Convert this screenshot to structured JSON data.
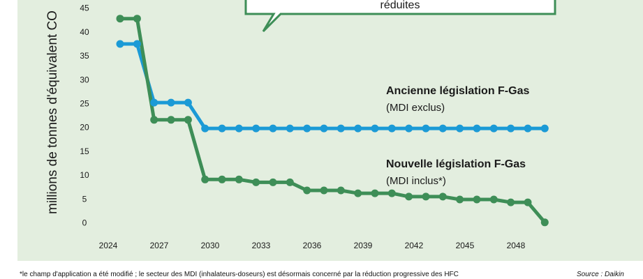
{
  "chart_data": {
    "type": "line",
    "ylabel": "millions de tonnes d'équivalent CO",
    "ylim": [
      0,
      45
    ],
    "yticks": [
      0,
      5,
      10,
      15,
      20,
      25,
      30,
      35,
      40,
      45
    ],
    "xlim": [
      2024,
      2050
    ],
    "xticks": [
      "2024",
      "2027",
      "2030",
      "2033",
      "2036",
      "2039",
      "2042",
      "2045",
      "2048"
    ],
    "grid": false,
    "x": [
      2024.7,
      2025.7,
      2026.7,
      2027.7,
      2028.7,
      2029.7,
      2030.7,
      2031.7,
      2032.7,
      2033.7,
      2034.7,
      2035.7,
      2036.7,
      2037.7,
      2038.7,
      2039.7,
      2040.7,
      2041.7,
      2042.7,
      2043.7,
      2044.7,
      2045.7,
      2046.7,
      2047.7,
      2048.7,
      2049.7
    ],
    "series": [
      {
        "name": "Ancienne législation F-Gas",
        "note": "(MDI exclus)",
        "color": "#1b9ad6",
        "values": [
          37.5,
          37.5,
          25.2,
          25.2,
          25.2,
          19.8,
          19.8,
          19.8,
          19.8,
          19.8,
          19.8,
          19.8,
          19.8,
          19.8,
          19.8,
          19.8,
          19.8,
          19.8,
          19.8,
          19.8,
          19.8,
          19.8,
          19.8,
          19.8,
          19.8,
          19.8
        ]
      },
      {
        "name": "Nouvelle législation F-Gas",
        "note": "(MDI inclus*)",
        "color": "#3e8e57",
        "values": [
          42.8,
          42.8,
          21.6,
          21.6,
          21.6,
          9.1,
          9.1,
          9.1,
          8.5,
          8.5,
          8.5,
          6.8,
          6.8,
          6.8,
          6.2,
          6.2,
          6.2,
          5.5,
          5.5,
          5.5,
          4.9,
          4.9,
          4.9,
          4.3,
          4.3,
          0.1
        ]
      }
    ],
    "annotation": "réduites",
    "footnote": "*le champ d'application a été modifié ; le secteur des MDI (inhalateurs-doseurs) est désormais concerné par la réduction progressive des HFC",
    "source": "Source : Daikin"
  }
}
